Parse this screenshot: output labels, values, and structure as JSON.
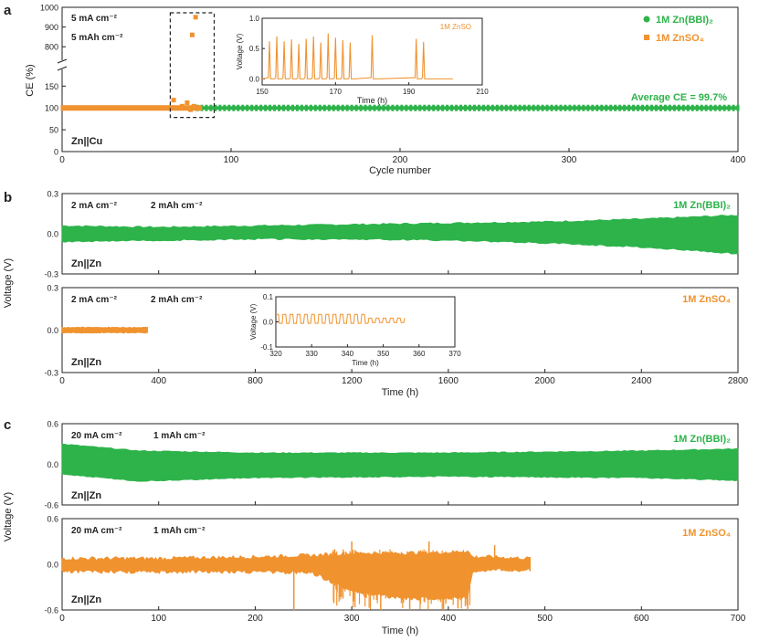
{
  "colors": {
    "green": "#2db34a",
    "orange": "#f0922e",
    "axis": "#222222"
  },
  "chart_data": [
    {
      "panel": "a",
      "type": "scatter",
      "title": "",
      "xlabel": "Cycle number",
      "ylabel": "CE (%)",
      "xlim": [
        0,
        400
      ],
      "x_ticks": [
        0,
        100,
        200,
        300,
        400
      ],
      "y_ticks_lower": [
        0,
        50,
        100,
        150
      ],
      "y_ticks_upper": [
        800,
        900,
        1000
      ],
      "ylim_lower": [
        0,
        180
      ],
      "ylim_upper": [
        750,
        1000
      ],
      "conditions": [
        "5 mA cm⁻²",
        "5 mAh cm⁻²"
      ],
      "cell_label": "Zn||Cu",
      "annotation": "Average CE = 99.7%",
      "legend": [
        "1M Zn(BBI)₂",
        "1M ZnSO₄"
      ],
      "series": [
        {
          "name": "1M Zn(BBI)₂",
          "x_range": [
            80,
            400
          ],
          "value": 100
        },
        {
          "name": "1M ZnSO₄",
          "x_range": [
            0,
            82
          ],
          "value": 100,
          "outliers": [
            [
              66,
              118
            ],
            [
              71,
              104
            ],
            [
              74,
              112
            ],
            [
              76,
              96
            ],
            [
              77,
              860
            ],
            [
              78,
              104
            ],
            [
              79,
              950
            ],
            [
              81,
              100
            ]
          ]
        }
      ],
      "inset": {
        "label": "1M ZnSO",
        "xlabel": "Time (h)",
        "ylabel": "Voltage (V)",
        "xlim": [
          150,
          210
        ],
        "ylim": [
          -0.1,
          1.0
        ],
        "x_ticks": [
          150,
          170,
          190,
          210
        ],
        "y_ticks": [
          0.0,
          0.5,
          1.0
        ],
        "spike_times": [
          152,
          154,
          156,
          158,
          160,
          162,
          164,
          166,
          168,
          170,
          172,
          174,
          180,
          192,
          194
        ],
        "spike_heights": [
          0.62,
          0.7,
          0.62,
          0.65,
          0.58,
          0.66,
          0.7,
          0.6,
          0.75,
          0.68,
          0.64,
          0.6,
          0.72,
          0.66,
          0.61
        ],
        "end_time": 202
      }
    },
    {
      "panel": "b",
      "type": "area",
      "xlabel": "Time (h)",
      "ylabel": "Voltage (V)",
      "xlim": [
        0,
        2800
      ],
      "x_ticks": [
        0,
        400,
        800,
        1200,
        1600,
        2000,
        2400,
        2800
      ],
      "top": {
        "series": "1M Zn(BBI)₂",
        "conditions": [
          "2 mA cm⁻²",
          "2 mAh cm⁻²"
        ],
        "cell_label": "Zn||Zn",
        "ylim": [
          -0.3,
          0.3
        ],
        "y_ticks": [
          -0.3,
          0.0,
          0.3
        ],
        "envelope": {
          "x": [
            0,
            400,
            800,
            1200,
            1600,
            2000,
            2400,
            2800
          ],
          "upper": [
            0.06,
            0.05,
            0.06,
            0.07,
            0.08,
            0.09,
            0.11,
            0.14
          ],
          "lower": [
            -0.06,
            -0.05,
            -0.04,
            -0.04,
            -0.05,
            -0.07,
            -0.1,
            -0.15
          ]
        }
      },
      "bottom": {
        "series": "1M ZnSO₄",
        "conditions": [
          "2 mA cm⁻²",
          "2 mAh cm⁻²"
        ],
        "cell_label": "Zn||Zn",
        "ylim": [
          -0.3,
          0.3
        ],
        "y_ticks": [
          -0.3,
          0.0,
          0.3
        ],
        "envelope": {
          "x": [
            0,
            200,
            355
          ],
          "upper": [
            0.02,
            0.02,
            0.02
          ],
          "lower": [
            -0.02,
            -0.02,
            -0.02
          ]
        },
        "inset": {
          "xlabel": "Time (h)",
          "ylabel": "Voltage (V)",
          "xlim": [
            320,
            370
          ],
          "ylim": [
            -0.1,
            0.1
          ],
          "x_ticks": [
            320,
            330,
            340,
            350,
            360,
            370
          ],
          "y_ticks": [
            -0.1,
            0.0,
            0.1
          ],
          "oscillation": {
            "start": 320,
            "end": 356,
            "period": 2,
            "amp_before": 0.03,
            "amp_after": 0.015,
            "change_at": 346
          }
        }
      }
    },
    {
      "panel": "c",
      "type": "area",
      "xlabel": "Time (h)",
      "ylabel": "Voltage (V)",
      "xlim": [
        0,
        700
      ],
      "x_ticks": [
        0,
        100,
        200,
        300,
        400,
        500,
        600,
        700
      ],
      "top": {
        "series": "1M Zn(BBI)₂",
        "conditions": [
          "20 mA cm⁻²",
          "1 mAh cm⁻²"
        ],
        "cell_label": "Zn||Zn",
        "ylim": [
          -0.6,
          0.6
        ],
        "y_ticks": [
          -0.6,
          0.0,
          0.6
        ],
        "envelope": {
          "x": [
            0,
            80,
            200,
            400,
            600,
            700
          ],
          "upper": [
            0.3,
            0.2,
            0.17,
            0.17,
            0.2,
            0.23
          ],
          "lower": [
            -0.15,
            -0.25,
            -0.2,
            -0.18,
            -0.2,
            -0.24
          ]
        }
      },
      "bottom": {
        "series": "1M ZnSO₄",
        "conditions": [
          "20 mA cm⁻²",
          "1 mAh cm⁻²"
        ],
        "cell_label": "Zn||Zn",
        "ylim": [
          -0.6,
          0.6
        ],
        "y_ticks": [
          -0.6,
          0.0,
          0.6
        ],
        "envelope": {
          "x": [
            0,
            100,
            200,
            260,
            300,
            350,
            400,
            420,
            425,
            440,
            485
          ],
          "upper": [
            0.08,
            0.08,
            0.1,
            0.12,
            0.15,
            0.15,
            0.16,
            0.18,
            0.1,
            0.1,
            0.08
          ],
          "lower": [
            -0.1,
            -0.1,
            -0.1,
            -0.12,
            -0.35,
            -0.45,
            -0.45,
            -0.45,
            -0.1,
            -0.08,
            -0.08
          ]
        },
        "spikes": [
          [
            240,
            -0.6
          ],
          [
            300,
            0.3
          ],
          [
            330,
            -0.6
          ],
          [
            360,
            -0.6
          ],
          [
            380,
            0.3
          ],
          [
            395,
            -0.6
          ],
          [
            410,
            -0.58
          ],
          [
            420,
            -0.6
          ],
          [
            448,
            0.25
          ]
        ]
      }
    }
  ]
}
